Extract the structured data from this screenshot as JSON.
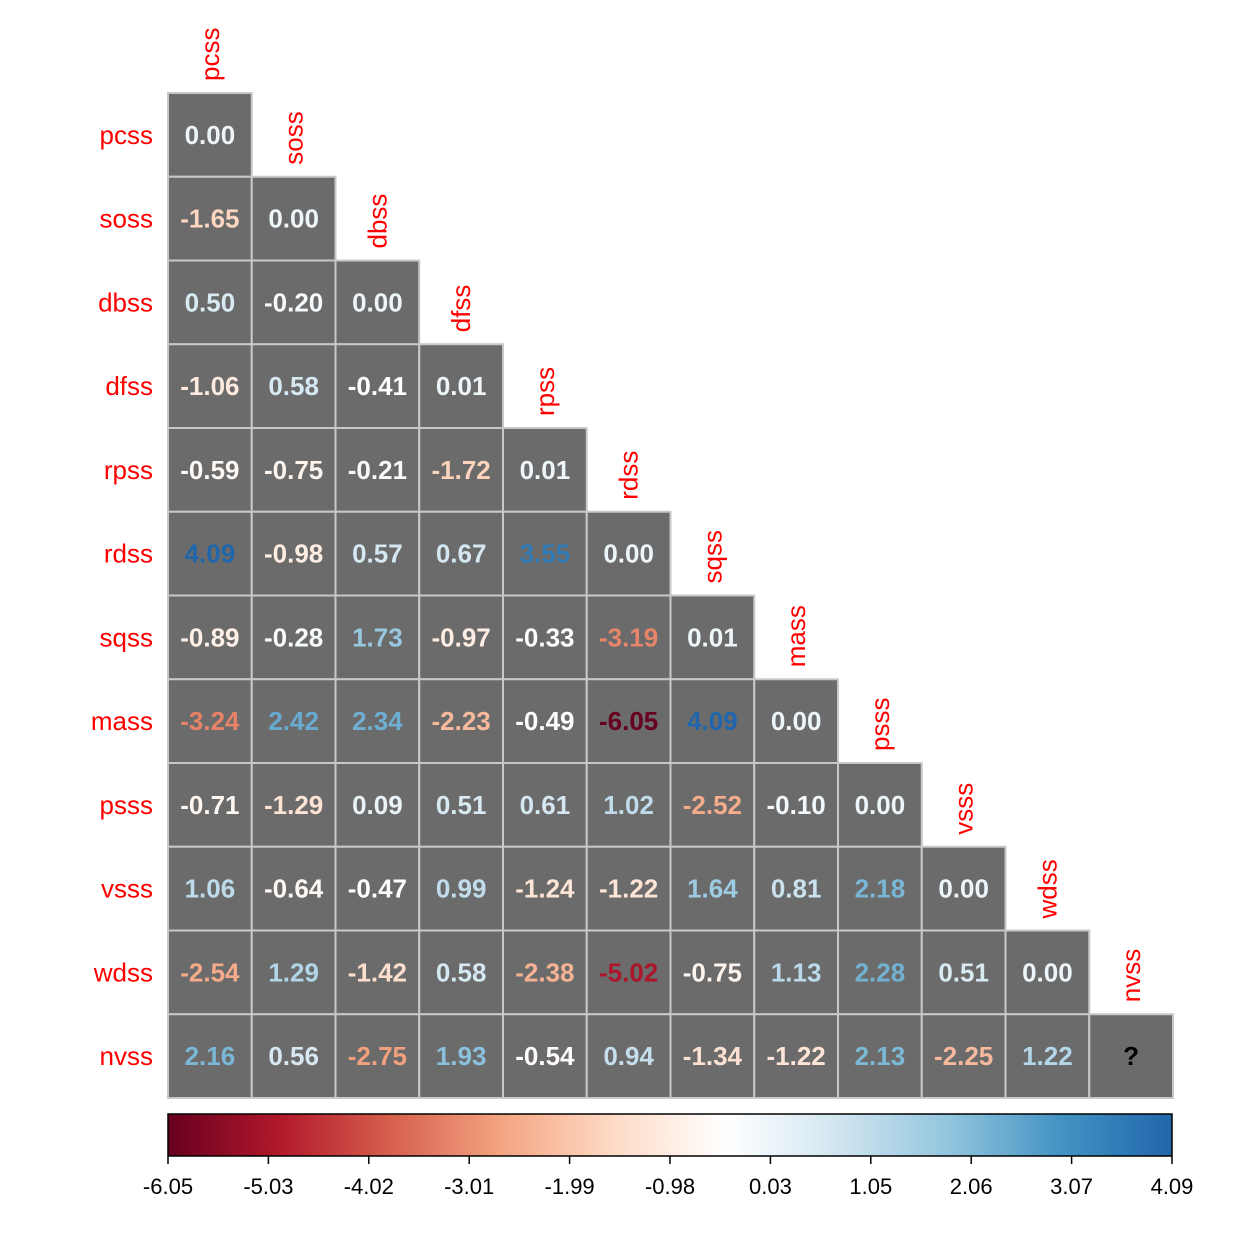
{
  "chart_data": {
    "type": "heatmap",
    "layout": "lower-triangular",
    "variables": [
      "pcss",
      "soss",
      "dbss",
      "dfss",
      "rpss",
      "rdss",
      "sqss",
      "mass",
      "psss",
      "vsss",
      "wdss",
      "nvss"
    ],
    "values": [
      [
        0.0
      ],
      [
        -1.65,
        0.0
      ],
      [
        0.5,
        -0.2,
        0.0
      ],
      [
        -1.06,
        0.58,
        -0.41,
        0.01
      ],
      [
        -0.59,
        -0.75,
        -0.21,
        -1.72,
        0.01
      ],
      [
        4.09,
        -0.98,
        0.57,
        0.67,
        3.55,
        0.0
      ],
      [
        -0.89,
        -0.28,
        1.73,
        -0.97,
        -0.33,
        -3.19,
        0.01
      ],
      [
        -3.24,
        2.42,
        2.34,
        -2.23,
        -0.49,
        -6.05,
        4.09,
        0.0
      ],
      [
        -0.71,
        -1.29,
        0.09,
        0.51,
        0.61,
        1.02,
        -2.52,
        -0.1,
        0.0
      ],
      [
        1.06,
        -0.64,
        -0.47,
        0.99,
        -1.24,
        -1.22,
        1.64,
        0.81,
        2.18,
        0.0
      ],
      [
        -2.54,
        1.29,
        -1.42,
        0.58,
        -2.38,
        -5.02,
        -0.75,
        1.13,
        2.28,
        0.51,
        0.0
      ],
      [
        2.16,
        0.56,
        -2.75,
        1.93,
        -0.54,
        0.94,
        -1.34,
        -1.22,
        2.13,
        -2.25,
        1.22,
        null
      ]
    ],
    "missing_label": "?",
    "colorbar": {
      "range": [
        -6.05,
        4.09
      ],
      "ticks": [
        "-6.05",
        "-5.03",
        "-4.02",
        "-3.01",
        "-1.99",
        "-0.98",
        "0.03",
        "1.05",
        "2.06",
        "3.07",
        "4.09"
      ],
      "colors": [
        "#67001f",
        "#b2182b",
        "#d6604d",
        "#f4a582",
        "#fddbc7",
        "#ffffff",
        "#d1e5f0",
        "#92c5de",
        "#4393c3",
        "#2166ac"
      ]
    },
    "colors": {
      "cell_background": "#6b6b6b",
      "cell_border": "#c8c8c8",
      "label_color": "#ff0000"
    },
    "title": "",
    "xlabel": "",
    "ylabel": ""
  }
}
